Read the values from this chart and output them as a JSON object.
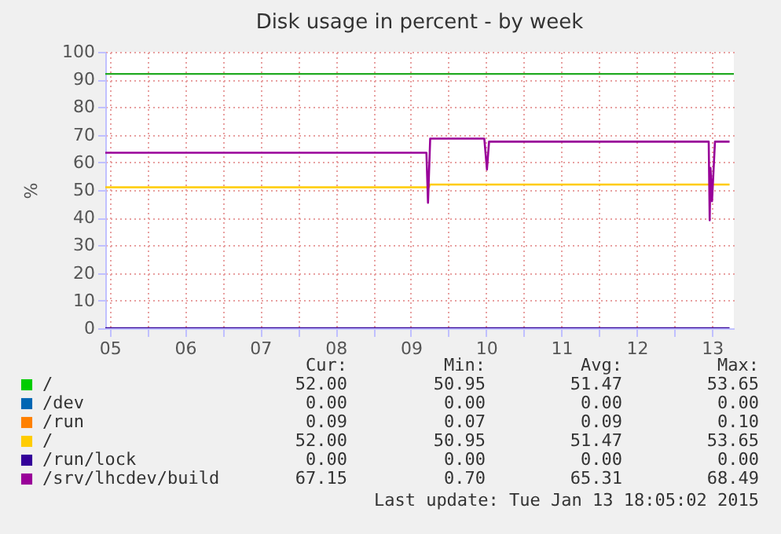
{
  "chart_data": {
    "type": "line",
    "title": "Disk usage in percent - by week",
    "ylabel": "%",
    "xlim": [
      5.44,
      13.79
    ],
    "ylim": [
      0,
      100
    ],
    "xticks": [
      {
        "value": 5.5,
        "label": "05"
      },
      {
        "value": 6,
        "label": null
      },
      {
        "value": 6.5,
        "label": "06"
      },
      {
        "value": 7,
        "label": null
      },
      {
        "value": 7.5,
        "label": "07"
      },
      {
        "value": 8,
        "label": null
      },
      {
        "value": 8.5,
        "label": "08"
      },
      {
        "value": 9,
        "label": null
      },
      {
        "value": 9.5,
        "label": "09"
      },
      {
        "value": 10,
        "label": null
      },
      {
        "value": 10.5,
        "label": "10"
      },
      {
        "value": 11,
        "label": null
      },
      {
        "value": 11.5,
        "label": "11"
      },
      {
        "value": 12,
        "label": null
      },
      {
        "value": 12.5,
        "label": "12"
      },
      {
        "value": 13,
        "label": null
      },
      {
        "value": 13.5,
        "label": "13"
      }
    ],
    "yticks": [
      0,
      10,
      20,
      30,
      40,
      50,
      60,
      70,
      80,
      90,
      100
    ],
    "grid": true,
    "legend": "bottom",
    "series": [
      {
        "name": "/",
        "color": "#00cc00"
      },
      {
        "name": "/dev",
        "color": "#0066b3"
      },
      {
        "name": "/run",
        "color": "#ff8000"
      },
      {
        "name": "/",
        "color": "#ffcc00",
        "x": [
          5.44,
          9.74,
          9.75,
          13.733
        ],
        "values": [
          51.0,
          51.0,
          52.0,
          52.0
        ]
      },
      {
        "name": "/run/lock",
        "color": "#330099",
        "x": [
          5.44,
          13.733
        ],
        "values": [
          0,
          0
        ]
      },
      {
        "name": "/srv/lhcdev/build",
        "color": "#990099",
        "x": [
          5.44,
          9.706,
          9.727,
          9.756,
          10.475,
          10.51,
          10.538,
          13.456,
          13.469,
          13.48,
          13.5,
          13.539,
          13.733
        ],
        "values": [
          63.5,
          63.5,
          45.4,
          68.6,
          68.6,
          57.4,
          67.5,
          67.5,
          39.1,
          58,
          46,
          67.5,
          67.5
        ]
      }
    ],
    "ref_lines": [
      {
        "axis": "y",
        "value": 92,
        "color": "#22aa22"
      }
    ],
    "annotations": [
      "Cur:",
      "Min:",
      "Avg:",
      "Max:",
      "52.00",
      "50.95",
      "51.47",
      "53.65",
      "0.00",
      "0.00",
      "0.00",
      "0.00",
      "0.09",
      "0.07",
      "0.09",
      "0.10",
      "52.00",
      "50.95",
      "51.47",
      "53.65",
      "0.00",
      "0.00",
      "0.00",
      "0.00",
      "67.15",
      "0.70",
      "65.31",
      "68.49",
      "Last update: Tue Jan 13 18:05:02 2015"
    ]
  }
}
